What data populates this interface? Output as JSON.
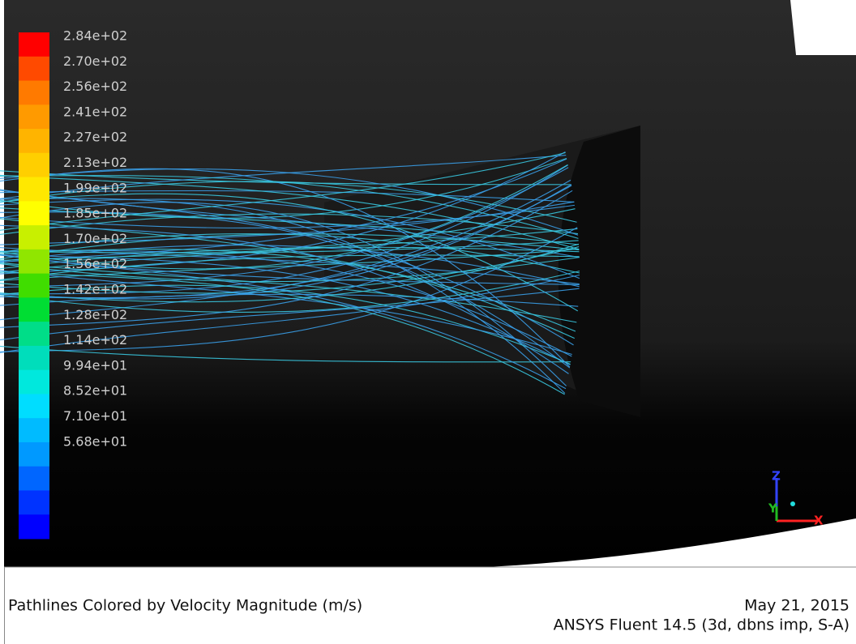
{
  "colorbar": {
    "labels": [
      "2.84e+02",
      "2.70e+02",
      "2.56e+02",
      "2.41e+02",
      "2.27e+02",
      "2.13e+02",
      "1.99e+02",
      "1.85e+02",
      "1.70e+02",
      "1.56e+02",
      "1.42e+02",
      "1.28e+02",
      "1.14e+02",
      "9.94e+01",
      "8.52e+01",
      "7.10e+01",
      "5.68e+01"
    ]
  },
  "axes": {
    "z": "Z",
    "y": "Y",
    "x": "X"
  },
  "footer": {
    "title": "Pathlines Colored by Velocity Magnitude (m/s)",
    "date": "May 21, 2015",
    "software": "ANSYS Fluent 14.5 (3d, dbns imp, S-A)"
  }
}
